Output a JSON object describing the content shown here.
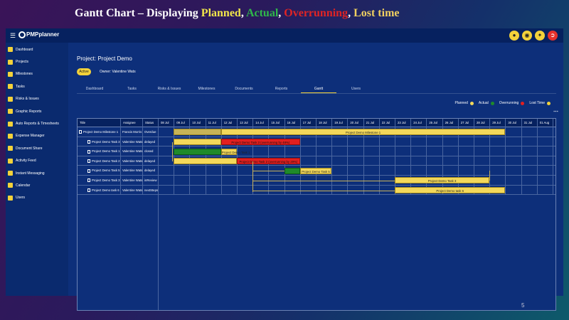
{
  "slide": {
    "title_prefix": "Gantt Chart – Displaying ",
    "title_planned": "Planned",
    "sep1": ", ",
    "title_actual": "Actual",
    "sep2": ", ",
    "title_overrunning": "Overrunning",
    "sep3": ", ",
    "title_lost": "Lost time",
    "page_number": "5"
  },
  "app": {
    "logo_text": "PMPplanner",
    "top_icons": [
      "bell-icon",
      "chat-icon",
      "settings-icon",
      "logout-icon"
    ]
  },
  "sidebar": {
    "items": [
      {
        "label": "Dashboard",
        "icon": "home-icon"
      },
      {
        "label": "Projects",
        "icon": "folder-icon"
      },
      {
        "label": "Milestones",
        "icon": "flag-icon"
      },
      {
        "label": "Tasks",
        "icon": "list-icon"
      },
      {
        "label": "Risks & Issues",
        "icon": "warning-icon"
      },
      {
        "label": "Graphic Reports",
        "icon": "chart-icon"
      },
      {
        "label": "Auto Reports & Timesheets",
        "icon": "folder-icon"
      },
      {
        "label": "Expense Manager",
        "icon": "money-icon"
      },
      {
        "label": "Document Share",
        "icon": "folder-icon"
      },
      {
        "label": "Activity Feed",
        "icon": "folder-icon"
      },
      {
        "label": "Instant Messaging",
        "icon": "chat-icon"
      },
      {
        "label": "Calendar",
        "icon": "calendar-icon"
      },
      {
        "label": "Users",
        "icon": "users-icon"
      }
    ]
  },
  "project": {
    "title": "Project: Project Demo",
    "status": "Active",
    "owner": "Owner: Valentine Wats"
  },
  "tabs": [
    "Dashboard",
    "Tasks",
    "Risks & Issues",
    "Milestones",
    "Documents",
    "Reports",
    "Gantt",
    "Users"
  ],
  "active_tab": "Gantt",
  "legend": {
    "planned": "Planned",
    "actual": "Actual",
    "overrunning": "Overrunning",
    "lost": "Lost Time",
    "colors": {
      "planned": "#f3d85a",
      "actual": "#1f8a2a",
      "overrunning": "#e21f1f",
      "lost": "#c7b457"
    }
  },
  "gantt": {
    "columns": {
      "title": "Title",
      "assignee": "Assignee",
      "status": "Status"
    },
    "dates": [
      "08 Jul",
      "09 Jul",
      "10 Jul",
      "11 Jul",
      "12 Jul",
      "13 Jul",
      "14 Jul",
      "15 Jul",
      "16 Jul",
      "17 Jul",
      "18 Jul",
      "19 Jul",
      "20 Jul",
      "21 Jul",
      "22 Jul",
      "23 Jul",
      "24 Jul",
      "25 Jul",
      "26 Jul",
      "27 Jul",
      "28 Jul",
      "29 Jul",
      "30 Jul",
      "31 Jul",
      "01 Aug"
    ],
    "rows": [
      {
        "title": "Project Demo Milestone 1",
        "assignee": "Francis Morris",
        "status": "Overdue",
        "type": "milestone"
      },
      {
        "title": "Project Demo Task 3",
        "assignee": "Valentine Wats",
        "status": "delayed",
        "type": "task"
      },
      {
        "title": "Project Demo Task 1",
        "assignee": "Valentine Wats",
        "status": "closed",
        "type": "task"
      },
      {
        "title": "Project Demo Task 2",
        "assignee": "Valentine Wats",
        "status": "delayed",
        "type": "task"
      },
      {
        "title": "Project Demo Task 5",
        "assignee": "Valentine Wats",
        "status": "delayed",
        "type": "task"
      },
      {
        "title": "Project Demo Task 3",
        "assignee": "Valentine Wats",
        "status": "inReview",
        "type": "task"
      },
      {
        "title": "Project Demo task 6",
        "assignee": "Valentine Wats",
        "status": "nextSteps",
        "type": "task"
      }
    ],
    "bars": [
      {
        "row": 0,
        "kind": "lost",
        "start": "09 Jul",
        "end": "12 Jul",
        "label": ""
      },
      {
        "row": 0,
        "kind": "planned",
        "start": "12 Jul",
        "end": "30 Jul",
        "label": "Project Demo Milestone 1"
      },
      {
        "row": 1,
        "kind": "planned",
        "start": "09 Jul",
        "end": "12 Jul",
        "label": ""
      },
      {
        "row": 1,
        "kind": "over",
        "start": "12 Jul",
        "end": "17 Jul",
        "label": "Project Demo Task 3 (overrunning by 48%)"
      },
      {
        "row": 2,
        "kind": "actual",
        "start": "09 Jul",
        "end": "12 Jul",
        "label": ""
      },
      {
        "row": 2,
        "kind": "planned",
        "start": "12 Jul",
        "end": "13 Jul",
        "label": "Project Demo Task 1"
      },
      {
        "row": 3,
        "kind": "planned",
        "start": "09 Jul",
        "end": "13 Jul",
        "label": ""
      },
      {
        "row": 3,
        "kind": "over",
        "start": "13 Jul",
        "end": "17 Jul",
        "label": "Project Demo Task 2 (overrunning by 29%)"
      },
      {
        "row": 4,
        "kind": "actual",
        "start": "16 Jul",
        "end": "17 Jul",
        "label": ""
      },
      {
        "row": 4,
        "kind": "planned",
        "start": "17 Jul",
        "end": "19 Jul",
        "label": "Project Demo Task 5"
      },
      {
        "row": 5,
        "kind": "planned",
        "start": "23 Jul",
        "end": "29 Jul",
        "label": "Project Demo Task 3"
      },
      {
        "row": 6,
        "kind": "planned",
        "start": "23 Jul",
        "end": "30 Jul",
        "label": "Project Demo task 6"
      }
    ]
  }
}
